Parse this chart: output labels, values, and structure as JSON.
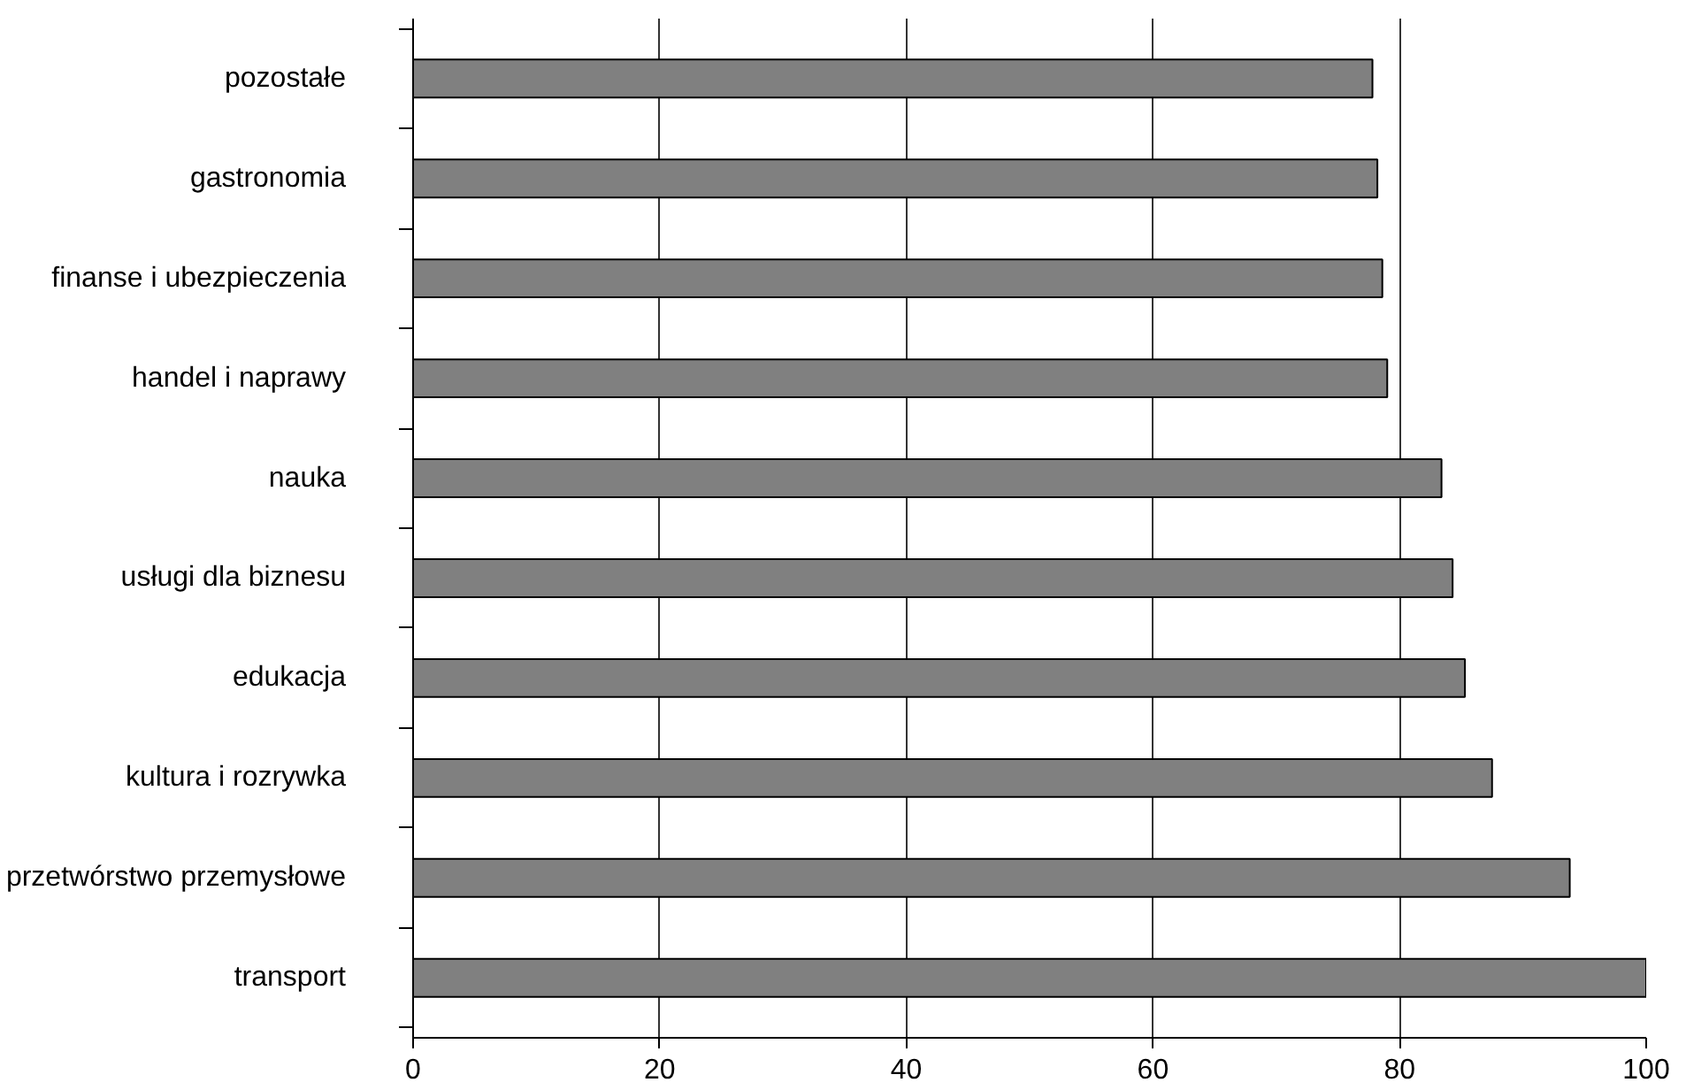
{
  "chart_data": {
    "type": "bar",
    "orientation": "horizontal",
    "categories": [
      "pozostałe",
      "gastronomia",
      "finanse i ubezpieczenia",
      "handel i naprawy",
      "nauka",
      "usługi dla biznesu",
      "edukacja",
      "kultura i rozrywka",
      "przetwórstwo przemysłowe",
      "transport"
    ],
    "values": [
      77.8,
      78.2,
      78.6,
      79.0,
      83.4,
      84.3,
      85.3,
      87.5,
      93.8,
      100
    ],
    "color": "#808080",
    "xlim": [
      0,
      100
    ],
    "xticks": [
      0,
      20,
      40,
      60,
      80,
      100
    ],
    "grid": "x"
  }
}
